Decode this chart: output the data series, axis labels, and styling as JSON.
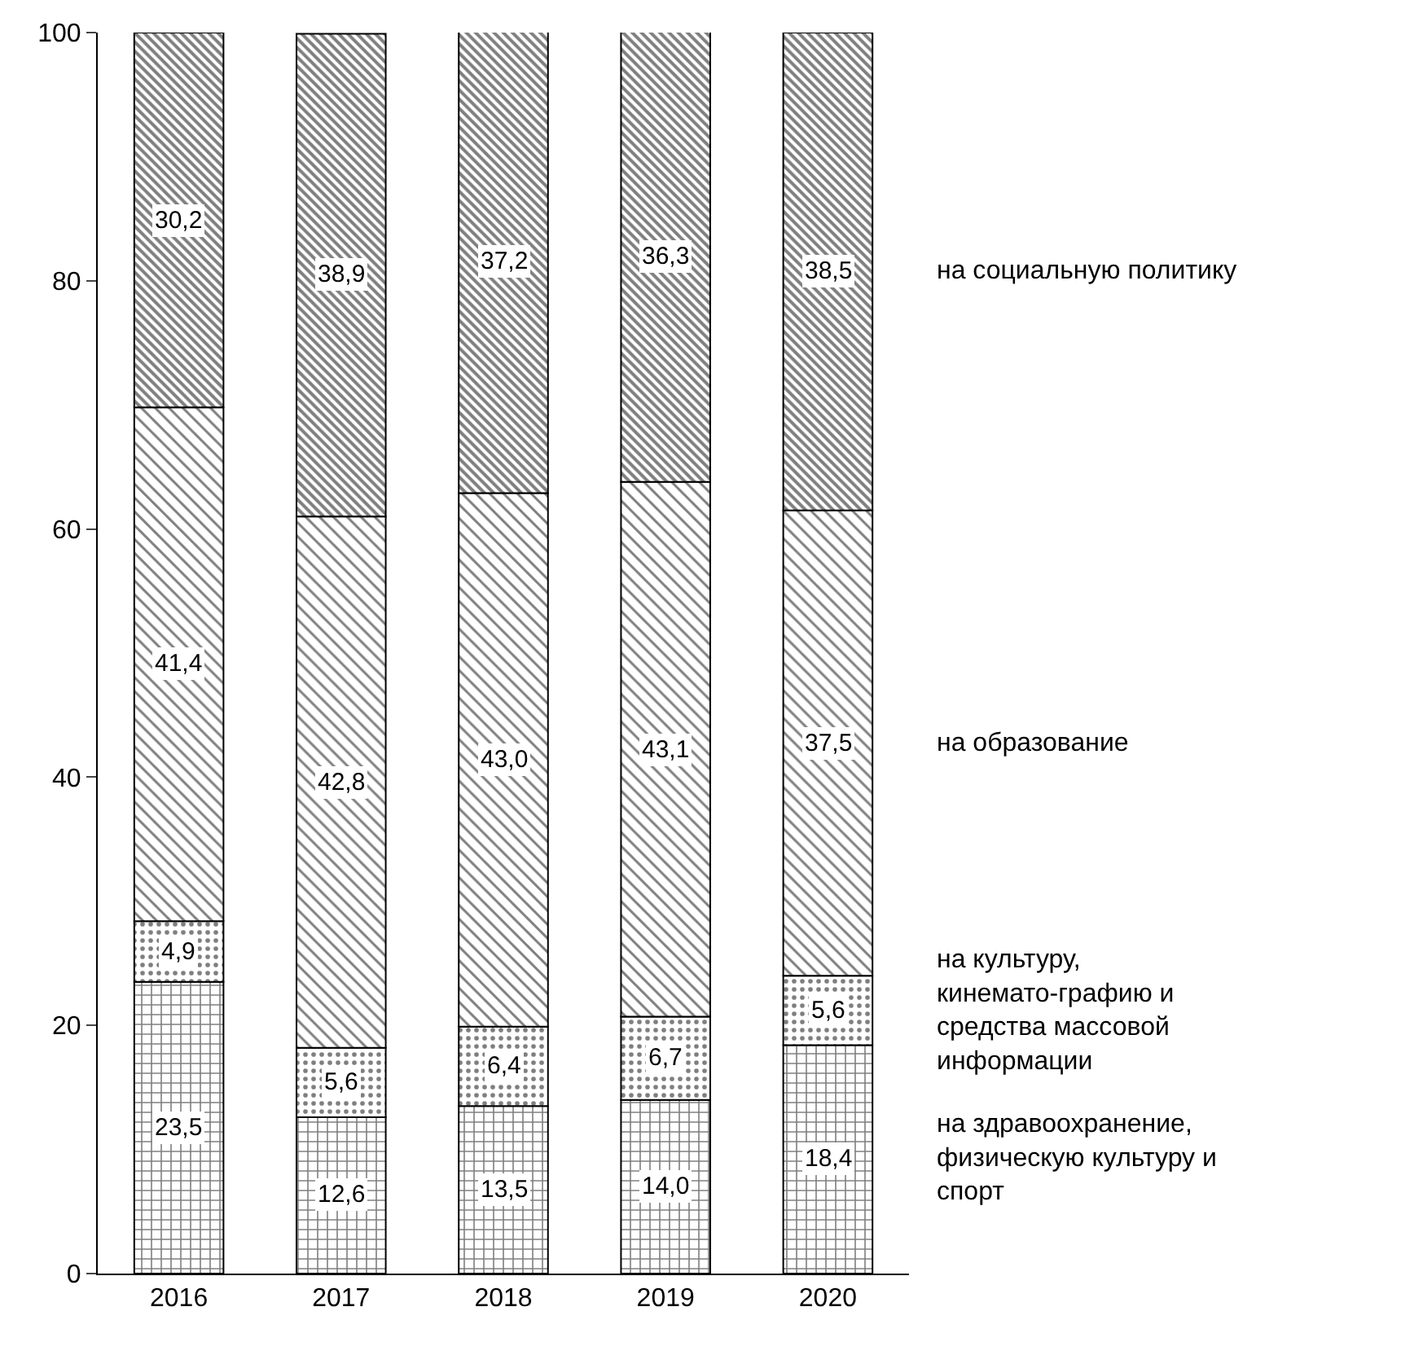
{
  "chart_data": {
    "type": "bar",
    "stacked": true,
    "categories": [
      "2016",
      "2017",
      "2018",
      "2019",
      "2020"
    ],
    "series": [
      {
        "name": "на здравоохранение, физическую культуру и спорт",
        "color": "#000000",
        "values": [
          23.5,
          12.6,
          13.5,
          14.0,
          18.4
        ],
        "value_labels": [
          "23,5",
          "12,6",
          "13,5",
          "14,0",
          "18,4"
        ]
      },
      {
        "name": "на культуру, кинемато-графию и средства массовой информации",
        "color": "#000000",
        "values": [
          4.9,
          5.6,
          6.4,
          6.7,
          5.6
        ],
        "value_labels": [
          "4,9",
          "5,6",
          "6,4",
          "6,7",
          "5,6"
        ]
      },
      {
        "name": "на образование",
        "color": "#000000",
        "values": [
          41.4,
          42.8,
          43.0,
          43.1,
          37.5
        ],
        "value_labels": [
          "41,4",
          "42,8",
          "43,0",
          "43,1",
          "37,5"
        ]
      },
      {
        "name": "на социальную политику",
        "color": "#000000",
        "values": [
          30.2,
          38.9,
          37.2,
          36.3,
          38.5
        ],
        "value_labels": [
          "30,2",
          "38,9",
          "37,2",
          "36,3",
          "38,5"
        ]
      }
    ],
    "ylim": [
      0,
      100
    ],
    "yticks": [
      0,
      20,
      40,
      60,
      80,
      100
    ],
    "legend": false
  }
}
